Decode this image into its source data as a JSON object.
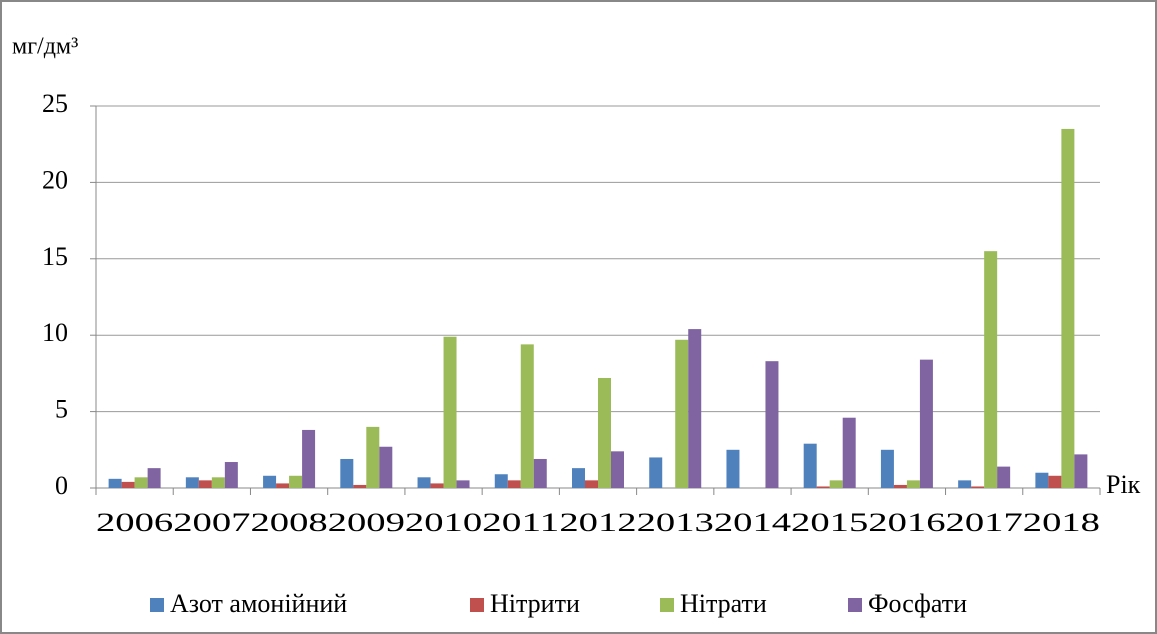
{
  "chart_data": {
    "type": "bar",
    "y_label": "мг/дм³",
    "x_label": "Рік",
    "categories": [
      "2006",
      "2007",
      "2008",
      "2009",
      "2010",
      "2011",
      "2012",
      "2013",
      "2014",
      "2015",
      "2016",
      "2017",
      "2018"
    ],
    "series": [
      {
        "name": "Азот амонійний",
        "color": "#4f81bd",
        "values": [
          0.6,
          0.7,
          0.8,
          1.9,
          0.7,
          0.9,
          1.3,
          2.0,
          2.5,
          2.9,
          2.5,
          0.5,
          1.0
        ]
      },
      {
        "name": "Нітрити",
        "color": "#c0504d",
        "values": [
          0.4,
          0.5,
          0.3,
          0.2,
          0.3,
          0.5,
          0.5,
          0,
          0,
          0.1,
          0.2,
          0.1,
          0.8
        ]
      },
      {
        "name": "Нітрати",
        "color": "#9bbb59",
        "values": [
          0.7,
          0.7,
          0.8,
          4.0,
          9.9,
          9.4,
          7.2,
          9.7,
          0,
          0.5,
          0.5,
          15.5,
          23.5
        ]
      },
      {
        "name": "Фосфати",
        "color": "#8064a2",
        "values": [
          1.3,
          1.7,
          3.8,
          2.7,
          0.5,
          1.9,
          2.4,
          10.4,
          8.3,
          4.6,
          8.4,
          1.4,
          2.2
        ]
      }
    ],
    "ylim": [
      0,
      25
    ],
    "yticks": [
      0,
      5,
      10,
      15,
      20,
      25
    ],
    "grid": true,
    "legend": "bottom"
  }
}
